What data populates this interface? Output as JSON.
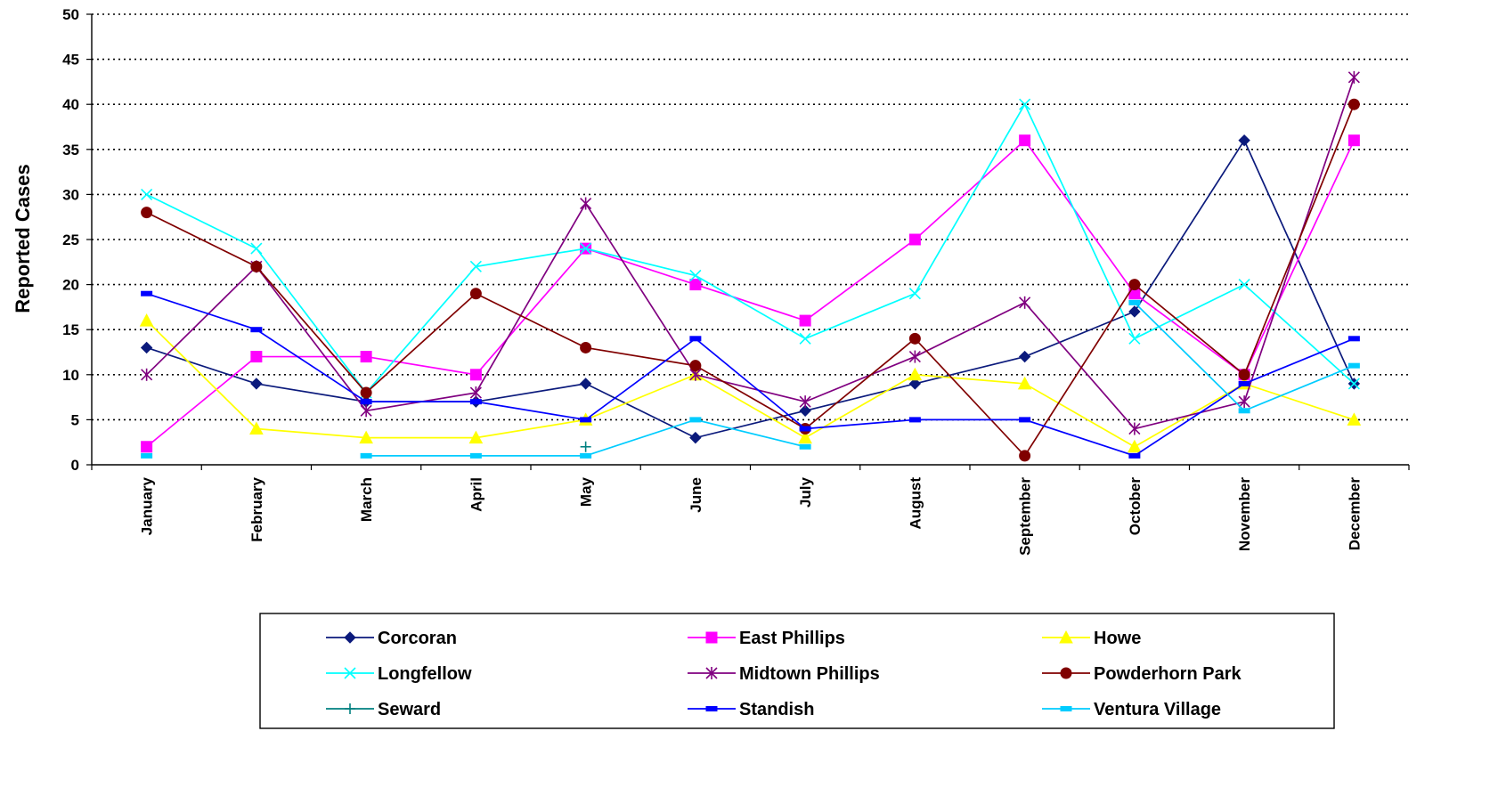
{
  "chart_data": {
    "type": "line",
    "ylabel": "Reported Cases",
    "xlabel": "",
    "ylim": [
      0,
      50
    ],
    "ytick_step": 5,
    "y_ticks": [
      "0",
      "5",
      "10",
      "15",
      "20",
      "25",
      "30",
      "35",
      "40",
      "45",
      "50"
    ],
    "grid": "horizontal dotted",
    "legend_position": "bottom",
    "categories": [
      "January",
      "February",
      "March",
      "April",
      "May",
      "June",
      "July",
      "August",
      "September",
      "October",
      "November",
      "December"
    ],
    "series": [
      {
        "name": "Corcoran",
        "color": "#0B1A7C",
        "marker": "diamond",
        "values": [
          13,
          9,
          7,
          7,
          9,
          3,
          6,
          9,
          12,
          17,
          36,
          9
        ]
      },
      {
        "name": "East Phillips",
        "color": "#FF00FF",
        "marker": "square",
        "values": [
          2,
          12,
          12,
          10,
          24,
          20,
          16,
          25,
          36,
          19,
          10,
          36
        ]
      },
      {
        "name": "Howe",
        "color": "#FFFF00",
        "marker": "triangle",
        "values": [
          16,
          4,
          3,
          3,
          5,
          10,
          3,
          10,
          9,
          2,
          9,
          5
        ]
      },
      {
        "name": "Longfellow",
        "color": "#00FFFF",
        "marker": "x",
        "values": [
          30,
          24,
          8,
          22,
          24,
          21,
          14,
          19,
          40,
          14,
          20,
          9
        ]
      },
      {
        "name": "Midtown Phillips",
        "color": "#800080",
        "marker": "star",
        "values": [
          10,
          22,
          6,
          8,
          29,
          10,
          7,
          12,
          18,
          4,
          7,
          43
        ]
      },
      {
        "name": "Powderhorn Park",
        "color": "#800000",
        "marker": "circle",
        "values": [
          28,
          22,
          8,
          19,
          13,
          11,
          4,
          14,
          1,
          20,
          10,
          40
        ]
      },
      {
        "name": "Seward",
        "color": "#008080",
        "marker": "plus",
        "values": [
          null,
          null,
          null,
          null,
          2,
          null,
          null,
          null,
          null,
          null,
          null,
          null
        ]
      },
      {
        "name": "Standish",
        "color": "#0000FF",
        "marker": "dash",
        "values": [
          19,
          15,
          7,
          7,
          5,
          14,
          4,
          5,
          5,
          1,
          9,
          14
        ]
      },
      {
        "name": "Ventura Village",
        "color": "#00CCFF",
        "marker": "dash",
        "values": [
          1,
          null,
          1,
          1,
          1,
          5,
          2,
          null,
          null,
          18,
          6,
          11
        ]
      }
    ]
  }
}
